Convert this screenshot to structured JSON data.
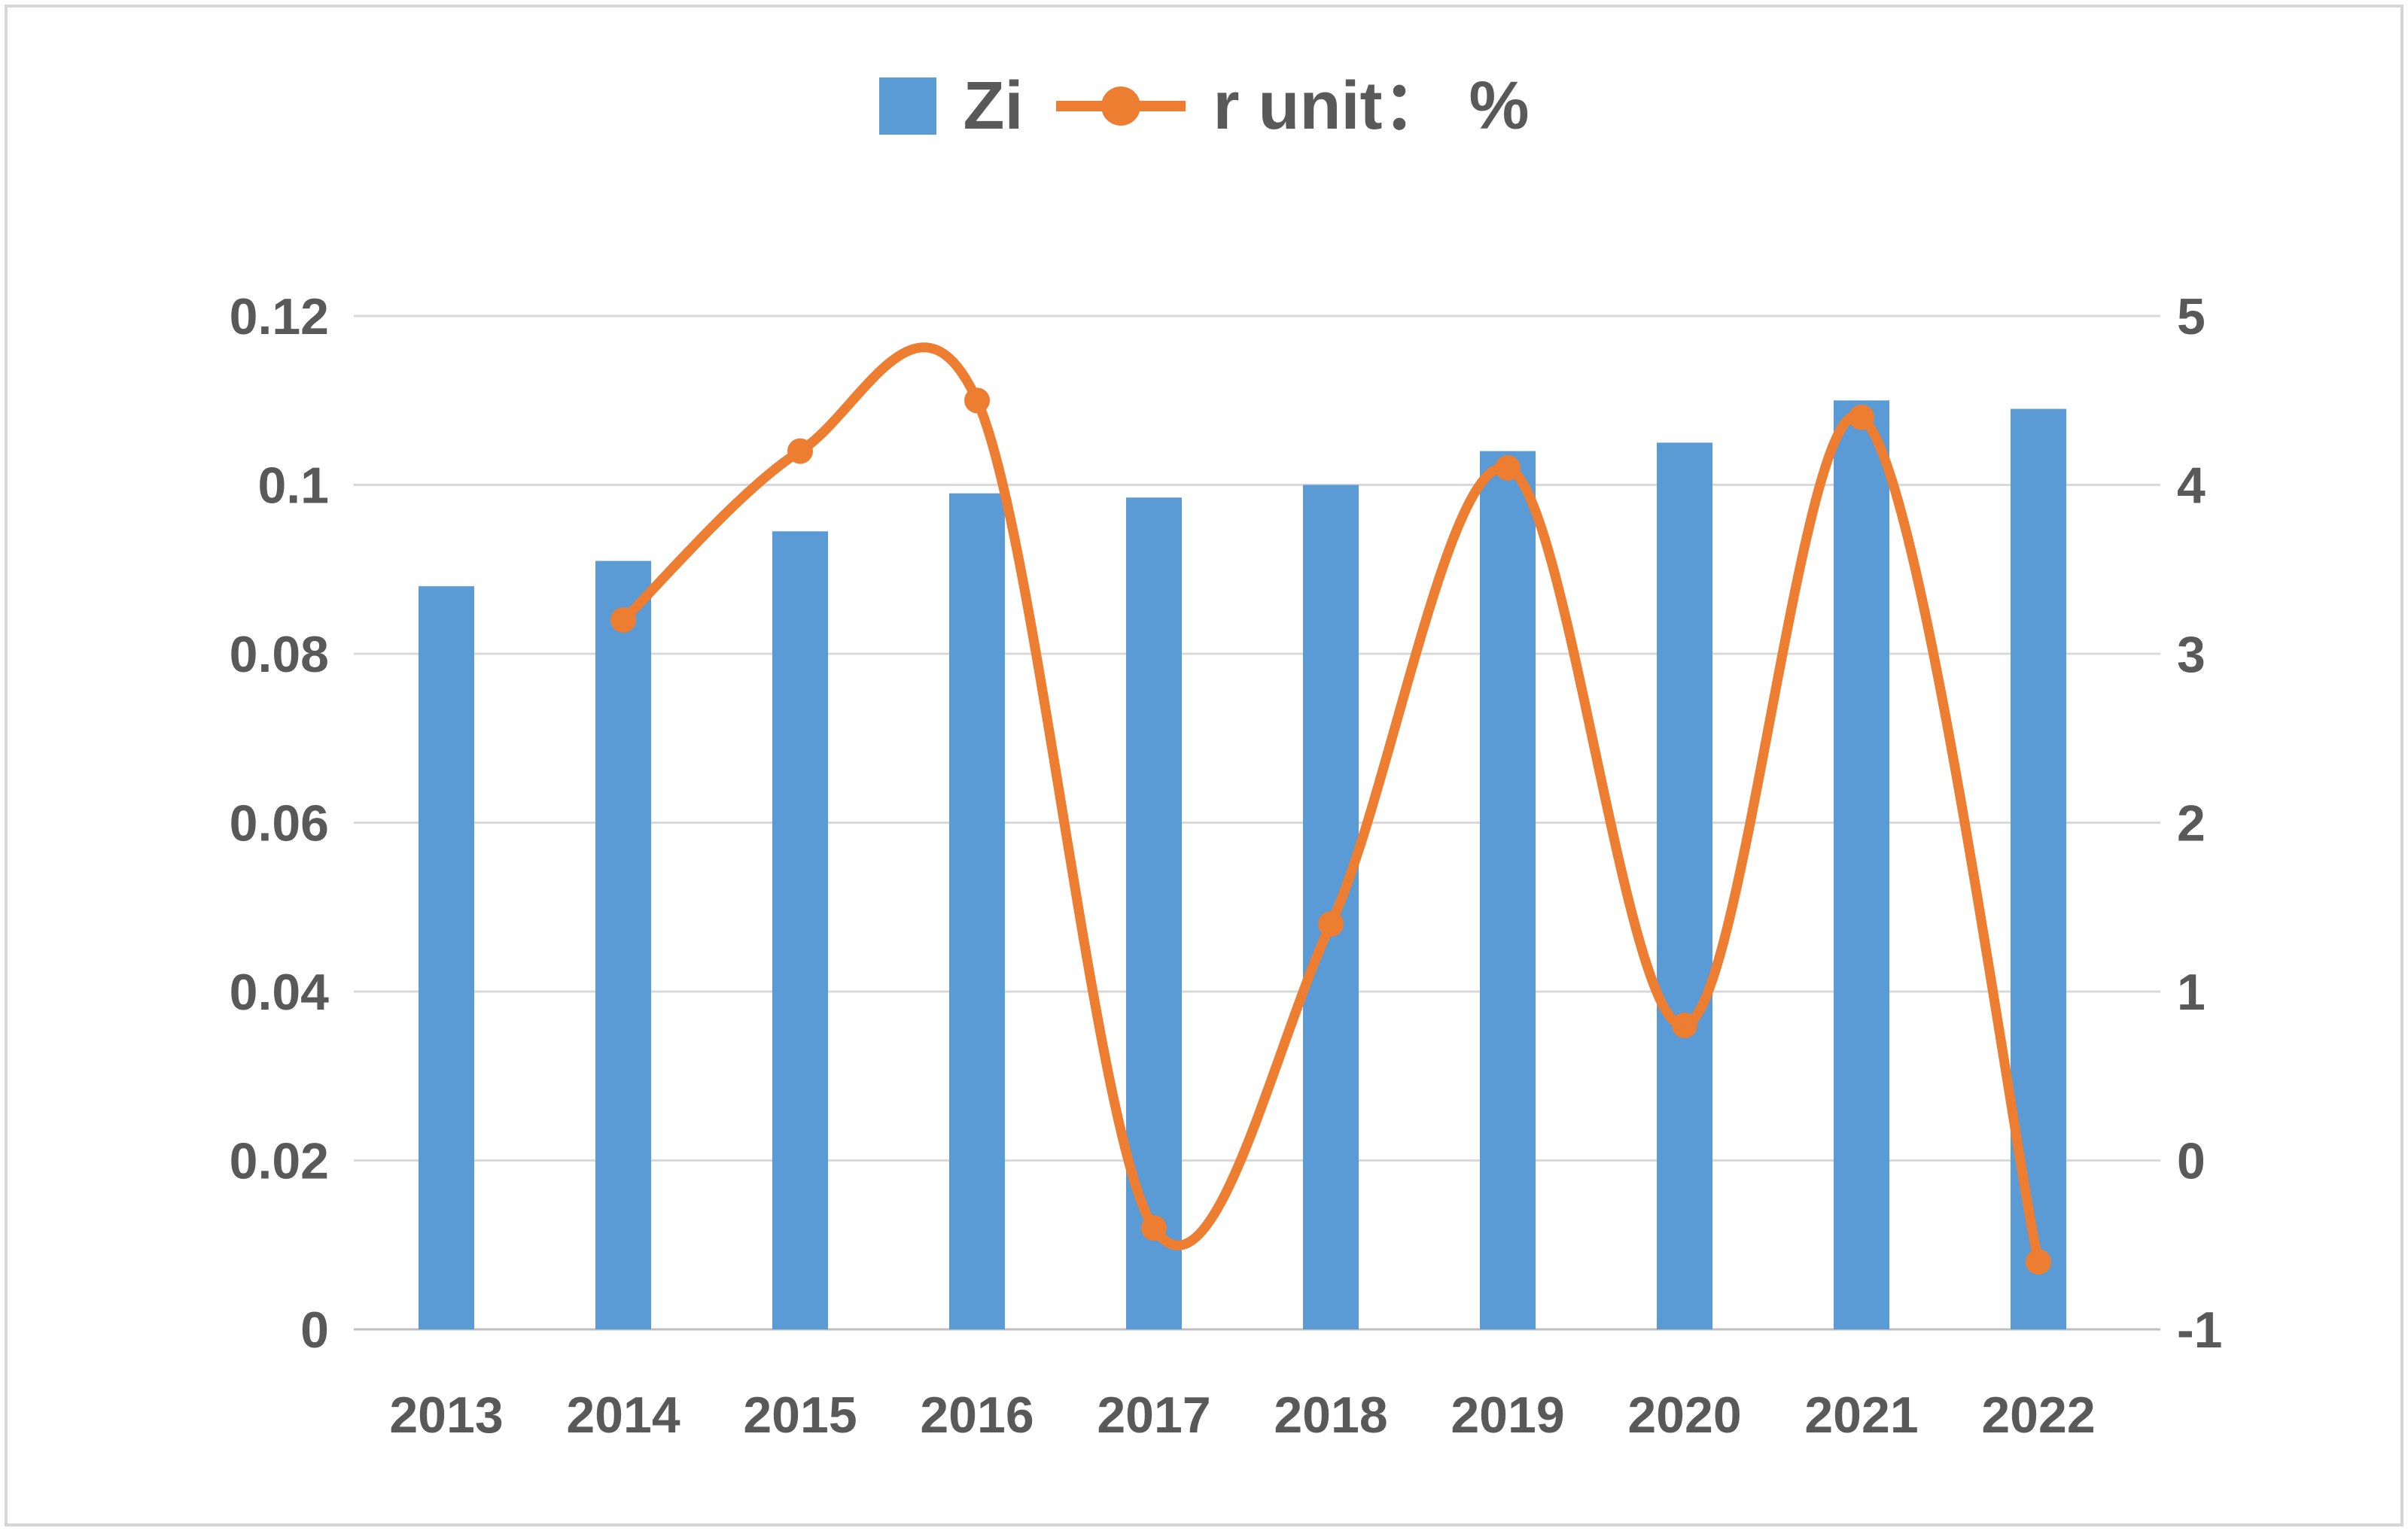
{
  "legend": {
    "series1_label": "Zi",
    "series2_label": "r unit： %"
  },
  "chart_data": {
    "type": "combo",
    "title": "",
    "categories": [
      "2013",
      "2014",
      "2015",
      "2016",
      "2017",
      "2018",
      "2019",
      "2020",
      "2021",
      "2022"
    ],
    "series": [
      {
        "name": "Zi",
        "type": "bar",
        "axis": "left",
        "color": "#5B9BD5",
        "values": [
          0.088,
          0.091,
          0.0945,
          0.099,
          0.0985,
          0.1,
          0.104,
          0.105,
          0.11,
          0.109
        ]
      },
      {
        "name": "r unit： %",
        "type": "line",
        "axis": "right",
        "color": "#ED7D31",
        "smooth": true,
        "marker": "circle",
        "values": [
          null,
          3.2,
          4.2,
          4.5,
          -0.4,
          1.4,
          4.1,
          0.8,
          4.4,
          -0.6
        ]
      }
    ],
    "left_axis": {
      "min": 0,
      "max": 0.12,
      "ticks": [
        "0.12",
        "0.1",
        "0.08",
        "0.06",
        "0.04",
        "0.02",
        "0"
      ]
    },
    "right_axis": {
      "min": -1,
      "max": 5,
      "ticks": [
        "5",
        "4",
        "3",
        "2",
        "1",
        "0",
        "-1"
      ]
    },
    "grid": true,
    "legend_position": "top",
    "text_color": "#595959",
    "grid_color": "#d9d9d9",
    "axis_line_color": "#bfbfbf"
  }
}
